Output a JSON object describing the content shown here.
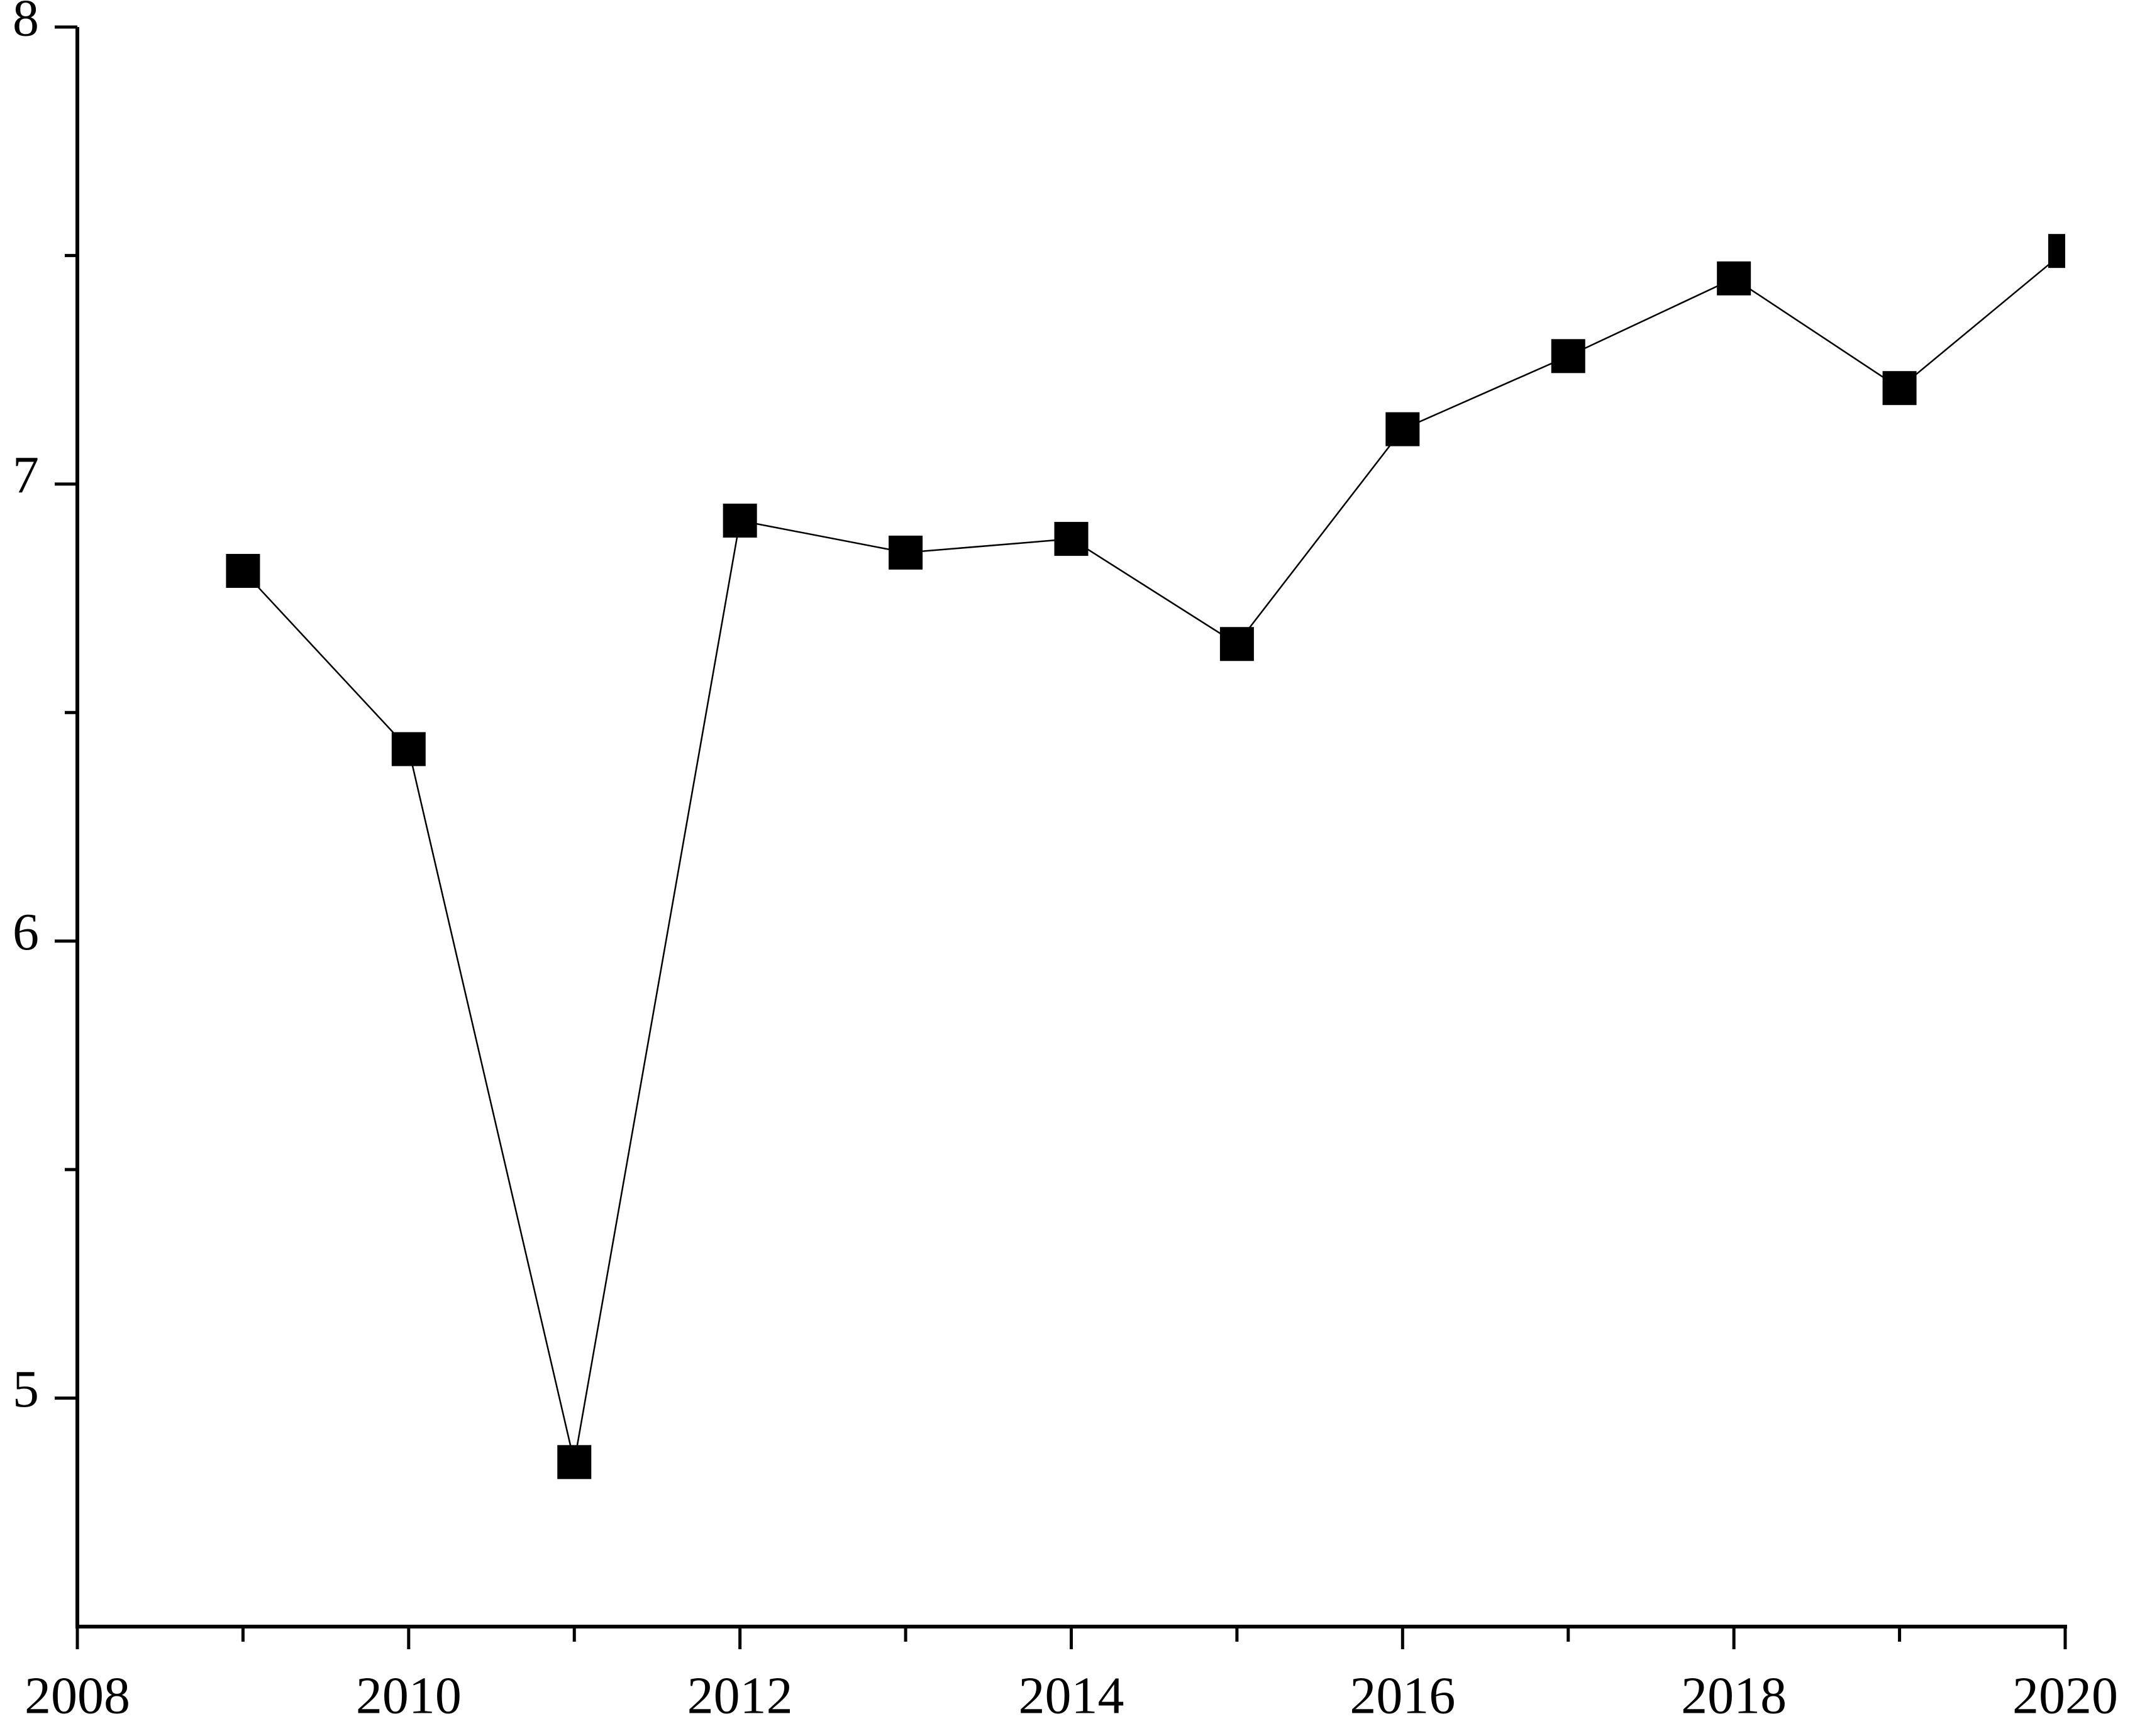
{
  "chart_data": {
    "type": "line",
    "x": [
      2009,
      2010,
      2011,
      2012,
      2013,
      2014,
      2015,
      2016,
      2017,
      2018,
      2019,
      2020
    ],
    "series": [
      {
        "color": "#000000",
        "values": [
          6.81,
          6.42,
          4.86,
          6.92,
          6.85,
          6.88,
          6.65,
          7.12,
          7.28,
          7.45,
          7.21,
          7.51
        ]
      }
    ],
    "xlim": [
      2008,
      2020
    ],
    "xticks": [
      2008,
      2010,
      2012,
      2014,
      2016,
      2018,
      2020
    ],
    "xminorticks": [
      2009,
      2011,
      2013,
      2015,
      2017,
      2019
    ],
    "ylim": [
      4.5,
      8
    ],
    "yticks": [
      5,
      6,
      7,
      8
    ],
    "yminorticks": [
      5.5,
      6.5,
      7.5
    ],
    "grid": false,
    "marker": "square"
  }
}
